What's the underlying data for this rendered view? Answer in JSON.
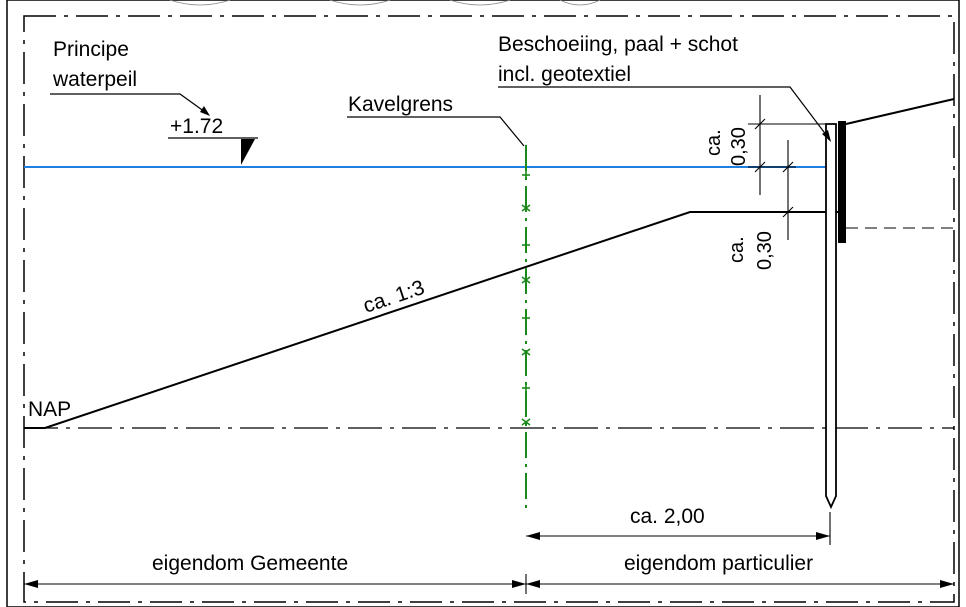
{
  "colors": {
    "water": "#1f7fe0",
    "boundary": "#1a8a1a",
    "ink": "#000000"
  },
  "labels": {
    "principe": "Principe",
    "waterpeil": "waterpeil",
    "water_level": "+1.72",
    "kavelgrens": "Kavelgrens",
    "beschoeiing_line1": "Beschoeiing, paal + schot",
    "beschoeiing_line2": "incl. geotextiel",
    "ca": "ca.",
    "dim_030_a": "0,30",
    "dim_030_b": "0,30",
    "slope": "ca. 1:3",
    "nap": "NAP",
    "width_200": "ca. 2,00",
    "eigendom_gemeente": "eigendom Gemeente",
    "eigendom_particulier": "eigendom particulier"
  }
}
